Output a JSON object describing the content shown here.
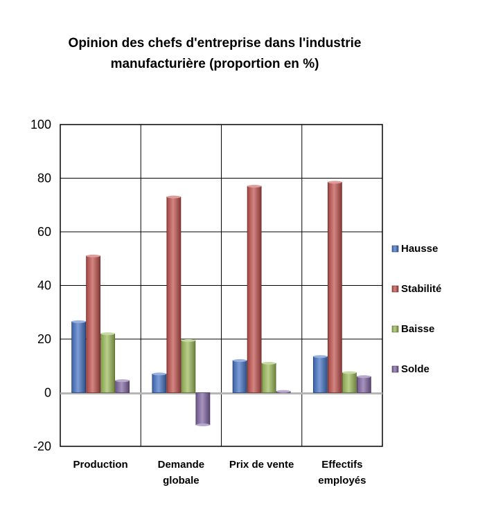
{
  "chart_data": {
    "type": "bar",
    "title_lines": [
      "Opinion des chefs d'entreprise dans l'industrie",
      "manufacturière (proportion en %)"
    ],
    "categories": [
      [
        "Production"
      ],
      [
        "Demande",
        "globale"
      ],
      [
        "Prix de vente"
      ],
      [
        "Effectifs",
        "employés"
      ]
    ],
    "series": [
      {
        "name": "Hausse",
        "color": "#4472C4",
        "values": [
          26.5,
          7,
          12,
          13.5
        ]
      },
      {
        "name": "Stabilité",
        "color": "#C0504D",
        "values": [
          51,
          73,
          77,
          78.5
        ]
      },
      {
        "name": "Baisse",
        "color": "#9BBB59",
        "values": [
          22,
          19.5,
          11,
          7.5
        ]
      },
      {
        "name": "Solde",
        "color": "#8064A2",
        "values": [
          4.5,
          -12,
          0.5,
          6
        ]
      }
    ],
    "ylim": [
      -20,
      100
    ],
    "yticks": [
      -20,
      0,
      20,
      40,
      60,
      80,
      100
    ],
    "grid": true,
    "legend_position": "right"
  }
}
